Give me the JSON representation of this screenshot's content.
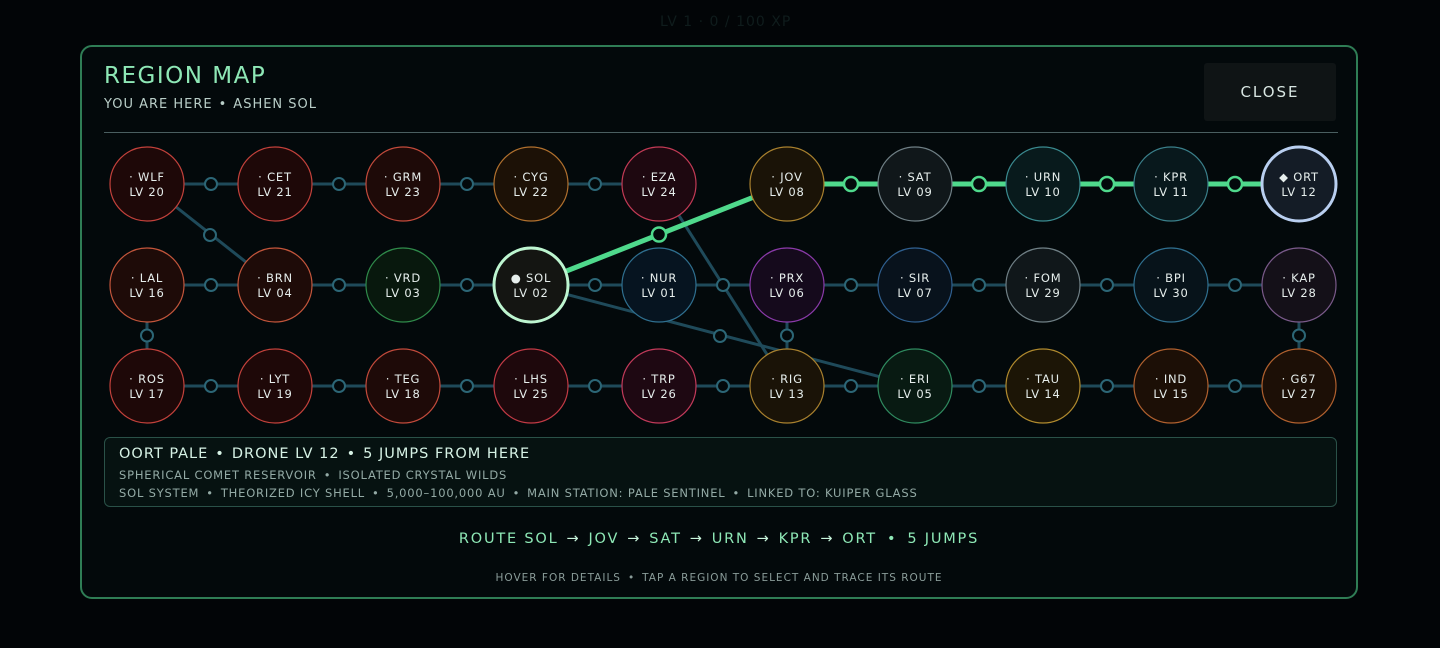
{
  "header": {
    "title": "REGION MAP",
    "you_are_here_label": "YOU ARE HERE",
    "current_region": "ASHEN SOL",
    "close_label": "CLOSE"
  },
  "regions": [
    {
      "code": "WLF",
      "level": "LV 20",
      "color": "#c2413b",
      "fill": "#1e0808"
    },
    {
      "code": "CET",
      "level": "LV 21",
      "color": "#c2413b",
      "fill": "#1e0808"
    },
    {
      "code": "GRM",
      "level": "LV 23",
      "color": "#c24a3b",
      "fill": "#1e0a08"
    },
    {
      "code": "CYG",
      "level": "LV 22",
      "color": "#b0702e",
      "fill": "#1c1106"
    },
    {
      "code": "EZA",
      "level": "LV 24",
      "color": "#c23a55",
      "fill": "#1e0810"
    },
    {
      "code": "JOV",
      "level": "LV 08",
      "color": "#a8802e",
      "fill": "#1a1307"
    },
    {
      "code": "SAT",
      "level": "LV 09",
      "color": "#6f7f85",
      "fill": "#10171a"
    },
    {
      "code": "URN",
      "level": "LV 10",
      "color": "#3a8a8f",
      "fill": "#081a1c"
    },
    {
      "code": "KPR",
      "level": "LV 11",
      "color": "#3a7f8a",
      "fill": "#08181c"
    },
    {
      "code": "ORT",
      "level": "LV 12",
      "color": "#b9cff0",
      "fill": "#141c26",
      "selected": true
    },
    {
      "code": "LAL",
      "level": "LV 16",
      "color": "#c2553b",
      "fill": "#1e0b08"
    },
    {
      "code": "BRN",
      "level": "LV 04",
      "color": "#c2553b",
      "fill": "#1e0b08"
    },
    {
      "code": "VRD",
      "level": "LV 03",
      "color": "#2f8a4a",
      "fill": "#08180d"
    },
    {
      "code": "SOL",
      "level": "LV 02",
      "color": "#bdf5d0",
      "fill": "#141512",
      "current": true
    },
    {
      "code": "NUR",
      "level": "LV 01",
      "color": "#2f6f8f",
      "fill": "#061420"
    },
    {
      "code": "PRX",
      "level": "LV 06",
      "color": "#8a3aa8",
      "fill": "#150a1c"
    },
    {
      "code": "SIR",
      "level": "LV 07",
      "color": "#2f5f8f",
      "fill": "#08121c"
    },
    {
      "code": "FOM",
      "level": "LV 29",
      "color": "#6f7f85",
      "fill": "#10171a"
    },
    {
      "code": "BPI",
      "level": "LV 30",
      "color": "#2f6f8f",
      "fill": "#07131a"
    },
    {
      "code": "KAP",
      "level": "LV 28",
      "color": "#7a5a8a",
      "fill": "#141018"
    },
    {
      "code": "ROS",
      "level": "LV 17",
      "color": "#c2413b",
      "fill": "#1e0808"
    },
    {
      "code": "LYT",
      "level": "LV 19",
      "color": "#c2413b",
      "fill": "#1e0808"
    },
    {
      "code": "TEG",
      "level": "LV 18",
      "color": "#c24a3b",
      "fill": "#1e0a08"
    },
    {
      "code": "LHS",
      "level": "LV 25",
      "color": "#c23a45",
      "fill": "#1e080c"
    },
    {
      "code": "TRP",
      "level": "LV 26",
      "color": "#c23a5a",
      "fill": "#1e0812"
    },
    {
      "code": "RIG",
      "level": "LV 13",
      "color": "#a8802e",
      "fill": "#1a1307"
    },
    {
      "code": "ERI",
      "level": "LV 05",
      "color": "#2f8a5f",
      "fill": "#081a12"
    },
    {
      "code": "TAU",
      "level": "LV 14",
      "color": "#b08a2e",
      "fill": "#1c1506"
    },
    {
      "code": "IND",
      "level": "LV 15",
      "color": "#b0602e",
      "fill": "#1c0f06"
    },
    {
      "code": "G67",
      "level": "LV 27",
      "color": "#b0602e",
      "fill": "#1c0f06"
    }
  ],
  "info": {
    "region_name": "OORT PALE",
    "drone_level": "DRONE LV 12",
    "distance": "5 JUMPS FROM HERE",
    "tag1": "SPHERICAL COMET RESERVOIR",
    "tag2": "ISOLATED CRYSTAL WILDS",
    "system": "SOL SYSTEM",
    "shell": "THEORIZED ICY SHELL",
    "range": "5,000–100,000 AU",
    "station": "MAIN STATION: PALE SENTINEL",
    "linked": "LINKED TO: KUIPER GLASS"
  },
  "route": {
    "label": "ROUTE",
    "stops": [
      "SOL",
      "JOV",
      "SAT",
      "URN",
      "KPR",
      "ORT"
    ],
    "jumps": "5 JUMPS"
  },
  "hint": {
    "hover": "HOVER FOR DETAILS",
    "tap": "TAP A REGION TO SELECT AND TRACE ITS ROUTE"
  },
  "colors": {
    "accent": "#8ee8b6",
    "route_line": "#4fd98c",
    "link_line": "#1f4a5a",
    "modal_border": "#2f7d55"
  }
}
